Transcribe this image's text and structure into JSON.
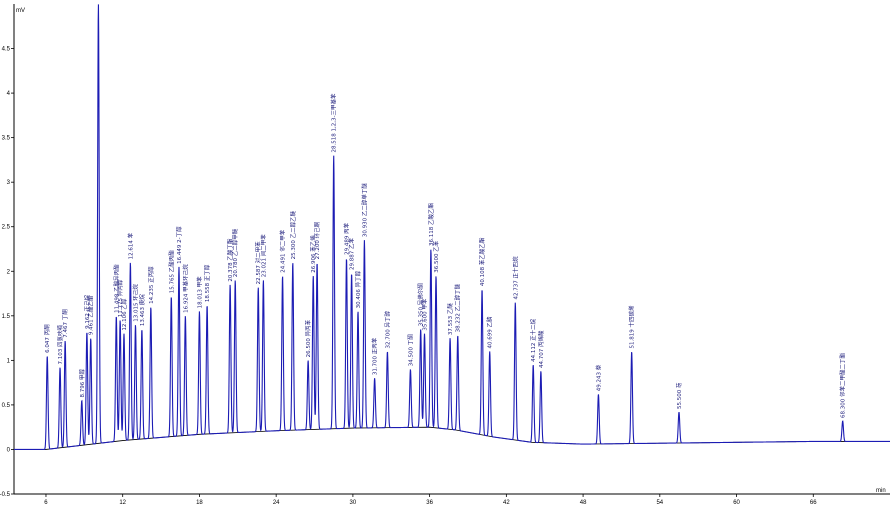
{
  "chart_data": {
    "type": "line",
    "title": "",
    "xlabel": "",
    "ylabel": "",
    "x_unit": "min",
    "y_unit": "mV",
    "xlim": [
      3.5,
      72
    ],
    "ylim": [
      -0.5,
      5
    ],
    "x_ticks": [
      6,
      12,
      18,
      24,
      30,
      36,
      42,
      48,
      54,
      60,
      66
    ],
    "y_ticks": [
      -0.5,
      0,
      0.5,
      1,
      1.5,
      2,
      2.5,
      3,
      3.5,
      4,
      4.5
    ],
    "grid": false,
    "colors": {
      "signal": "#1c1cb4",
      "baseline": "#000000",
      "labels": "#1a1a7a",
      "axis": "#000000"
    },
    "baseline": [
      {
        "x": 3.5,
        "y": 0.0
      },
      {
        "x": 6.0,
        "y": 0.0
      },
      {
        "x": 12.0,
        "y": 0.1
      },
      {
        "x": 18.0,
        "y": 0.17
      },
      {
        "x": 24.0,
        "y": 0.21
      },
      {
        "x": 30.0,
        "y": 0.24
      },
      {
        "x": 36.0,
        "y": 0.25
      },
      {
        "x": 38.0,
        "y": 0.22
      },
      {
        "x": 41.0,
        "y": 0.14
      },
      {
        "x": 44.0,
        "y": 0.08
      },
      {
        "x": 48.0,
        "y": 0.06
      },
      {
        "x": 54.0,
        "y": 0.07
      },
      {
        "x": 60.0,
        "y": 0.08
      },
      {
        "x": 66.0,
        "y": 0.09
      },
      {
        "x": 72.0,
        "y": 0.09
      }
    ],
    "peaks": [
      {
        "rt": 6.1,
        "height": 1.05,
        "label": "6.047 丙酮"
      },
      {
        "rt": 7.1,
        "height": 0.92,
        "label": "7.103 四氢呋喃"
      },
      {
        "rt": 7.5,
        "height": 1.22,
        "label": "7.467 丁酮"
      },
      {
        "rt": 8.8,
        "height": 0.55,
        "label": "8.796 甲醇"
      },
      {
        "rt": 9.2,
        "height": 1.32,
        "label": "9.162 正己烷"
      },
      {
        "rt": 9.5,
        "height": 1.25,
        "label": "9.461 乙酸乙酯"
      },
      {
        "rt": 10.1,
        "height": 5.0,
        "label": "10.097 溶剂峰"
      },
      {
        "rt": 11.5,
        "height": 1.5,
        "label": "11.498 乙酸异丙酯"
      },
      {
        "rt": 11.8,
        "height": 1.45,
        "label": "11.775 异丙醇"
      },
      {
        "rt": 12.1,
        "height": 1.3,
        "label": "12.106 乙醇"
      },
      {
        "rt": 12.6,
        "height": 2.1,
        "label": "12.614 苯"
      },
      {
        "rt": 13.0,
        "height": 1.4,
        "label": "13.015 环己烷"
      },
      {
        "rt": 13.5,
        "height": 1.35,
        "label": "13.463 庚烷"
      },
      {
        "rt": 14.2,
        "height": 1.6,
        "label": "14.235 正丙醇"
      },
      {
        "rt": 15.8,
        "height": 1.72,
        "label": "15.765 乙酸丙酯"
      },
      {
        "rt": 16.4,
        "height": 2.05,
        "label": "16.449 2-丁醇"
      },
      {
        "rt": 16.9,
        "height": 1.5,
        "label": "16.924 甲基环己烷"
      },
      {
        "rt": 18.0,
        "height": 1.55,
        "label": "18.013 甲苯"
      },
      {
        "rt": 18.6,
        "height": 1.62,
        "label": "18.558 正丁醇"
      },
      {
        "rt": 20.4,
        "height": 1.85,
        "label": "20.378 乙酸丁酯"
      },
      {
        "rt": 20.8,
        "height": 1.9,
        "label": "20.780 乙二醇甲醚"
      },
      {
        "rt": 22.6,
        "height": 1.82,
        "label": "22.587 对二甲苯"
      },
      {
        "rt": 23.0,
        "height": 1.9,
        "label": "23.021 间二甲苯"
      },
      {
        "rt": 24.5,
        "height": 1.95,
        "label": "24.491 邻二甲苯"
      },
      {
        "rt": 25.3,
        "height": 2.1,
        "label": "25.300 乙二醇乙醚"
      },
      {
        "rt": 26.5,
        "height": 1.0,
        "label": "26.500 异丙苯"
      },
      {
        "rt": 26.9,
        "height": 1.95,
        "label": "26.906 苯乙烯"
      },
      {
        "rt": 27.2,
        "height": 2.1,
        "label": "27.200 环己酮"
      },
      {
        "rt": 28.5,
        "height": 3.3,
        "label": "28.518 1,2,3-三甲基苯"
      },
      {
        "rt": 29.5,
        "height": 2.15,
        "label": "29.489 丙苯"
      },
      {
        "rt": 29.9,
        "height": 1.98,
        "label": "29.887 乙苯"
      },
      {
        "rt": 30.4,
        "height": 1.55,
        "label": "30.406 异丁醇"
      },
      {
        "rt": 30.9,
        "height": 2.35,
        "label": "30.930 乙二醇单丁醚"
      },
      {
        "rt": 31.7,
        "height": 0.8,
        "label": "31.700 正丙苯"
      },
      {
        "rt": 32.7,
        "height": 1.1,
        "label": "32.700 异丁醇"
      },
      {
        "rt": 34.5,
        "height": 0.9,
        "label": "34.500 丁酮"
      },
      {
        "rt": 35.3,
        "height": 1.35,
        "label": "35.350 异佛尔酮"
      },
      {
        "rt": 35.6,
        "height": 1.3,
        "label": "35.600 甲苯"
      },
      {
        "rt": 36.1,
        "height": 2.25,
        "label": "36.118 乙酸乙酯"
      },
      {
        "rt": 36.5,
        "height": 1.95,
        "label": "36.500 乙苯"
      },
      {
        "rt": 37.6,
        "height": 1.25,
        "label": "37.553 乙醚"
      },
      {
        "rt": 38.2,
        "height": 1.28,
        "label": "38.232 乙二醇丁醚"
      },
      {
        "rt": 40.1,
        "height": 1.8,
        "label": "40.108 苯乙酸乙酯"
      },
      {
        "rt": 40.7,
        "height": 1.1,
        "label": "40.699 乙腈"
      },
      {
        "rt": 42.7,
        "height": 1.65,
        "label": "42.737 正十四烷"
      },
      {
        "rt": 44.1,
        "height": 0.95,
        "label": "44.112 正十二烷"
      },
      {
        "rt": 44.7,
        "height": 0.88,
        "label": "44.707 丙烯酸"
      },
      {
        "rt": 49.2,
        "height": 0.62,
        "label": "49.243 萘"
      },
      {
        "rt": 51.8,
        "height": 1.1,
        "label": "51.819 十四碳烯"
      },
      {
        "rt": 55.5,
        "height": 0.42,
        "label": "55.500 芴"
      },
      {
        "rt": 68.3,
        "height": 0.32,
        "label": "68.300 邻苯二甲酸二丁酯"
      }
    ]
  }
}
